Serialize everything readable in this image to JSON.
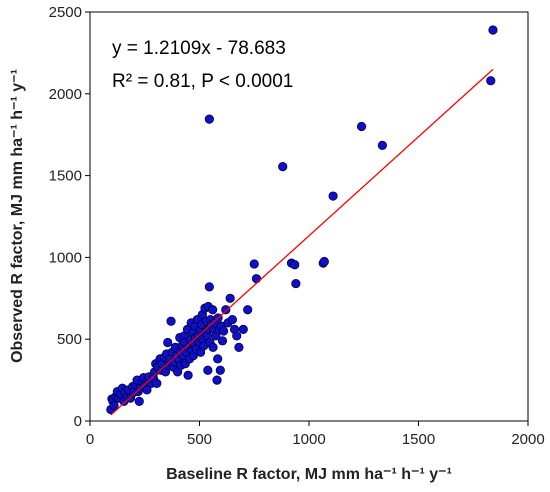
{
  "chart_data": {
    "type": "scatter",
    "title": "",
    "xlabel": "Baseline R factor, MJ mm ha⁻¹ h⁻¹ y⁻¹",
    "ylabel": "Observed R factor, MJ mm ha⁻¹ h⁻¹ y⁻¹",
    "xlim": [
      0,
      2000
    ],
    "ylim": [
      0,
      2500
    ],
    "xticks": [
      0,
      500,
      1000,
      1500,
      2000
    ],
    "yticks": [
      0,
      500,
      1000,
      1500,
      2000,
      2500
    ],
    "grid": false,
    "legend": "none",
    "annotations": [
      "y = 1.2109x - 78.683",
      "R² = 0.81, P < 0.0001"
    ],
    "fit_line": {
      "slope": 1.2109,
      "intercept": -78.683,
      "x_range": [
        95,
        1840
      ],
      "color": "#ff0000"
    },
    "colors": {
      "point_fill": "#1010c8",
      "point_stroke": "#000040",
      "fit": "#ff0000"
    },
    "series": [
      {
        "values": [
          [
            95,
            70
          ],
          [
            100,
            135
          ],
          [
            105,
            120
          ],
          [
            110,
            95
          ],
          [
            118,
            150
          ],
          [
            125,
            180
          ],
          [
            130,
            140
          ],
          [
            140,
            165
          ],
          [
            148,
            200
          ],
          [
            155,
            120
          ],
          [
            160,
            175
          ],
          [
            170,
            150
          ],
          [
            175,
            190
          ],
          [
            185,
            140
          ],
          [
            195,
            210
          ],
          [
            200,
            175
          ],
          [
            210,
            220
          ],
          [
            215,
            250
          ],
          [
            220,
            180
          ],
          [
            225,
            120
          ],
          [
            230,
            200
          ],
          [
            240,
            240
          ],
          [
            245,
            265
          ],
          [
            250,
            215
          ],
          [
            260,
            190
          ],
          [
            265,
            250
          ],
          [
            270,
            270
          ],
          [
            280,
            230
          ],
          [
            290,
            260
          ],
          [
            295,
            300
          ],
          [
            300,
            350
          ],
          [
            305,
            230
          ],
          [
            310,
            330
          ],
          [
            320,
            380
          ],
          [
            325,
            310
          ],
          [
            330,
            350
          ],
          [
            340,
            390
          ],
          [
            345,
            300
          ],
          [
            350,
            410
          ],
          [
            355,
            480
          ],
          [
            360,
            340
          ],
          [
            365,
            380
          ],
          [
            370,
            610
          ],
          [
            375,
            420
          ],
          [
            380,
            330
          ],
          [
            385,
            360
          ],
          [
            390,
            450
          ],
          [
            395,
            400
          ],
          [
            400,
            300
          ],
          [
            405,
            380
          ],
          [
            410,
            510
          ],
          [
            412,
            420
          ],
          [
            415,
            340
          ],
          [
            420,
            460
          ],
          [
            425,
            400
          ],
          [
            430,
            520
          ],
          [
            432,
            480
          ],
          [
            435,
            350
          ],
          [
            440,
            420
          ],
          [
            445,
            560
          ],
          [
            448,
            280
          ],
          [
            450,
            450
          ],
          [
            455,
            380
          ],
          [
            460,
            500
          ],
          [
            462,
            600
          ],
          [
            465,
            430
          ],
          [
            470,
            540
          ],
          [
            472,
            400
          ],
          [
            475,
            470
          ],
          [
            480,
            580
          ],
          [
            482,
            510
          ],
          [
            485,
            440
          ],
          [
            490,
            620
          ],
          [
            495,
            520
          ],
          [
            500,
            480
          ],
          [
            503,
            560
          ],
          [
            505,
            420
          ],
          [
            510,
            590
          ],
          [
            513,
            650
          ],
          [
            515,
            500
          ],
          [
            520,
            460
          ],
          [
            525,
            690
          ],
          [
            528,
            540
          ],
          [
            530,
            610
          ],
          [
            535,
            520
          ],
          [
            538,
            310
          ],
          [
            540,
            700
          ],
          [
            543,
            560
          ],
          [
            545,
            820
          ],
          [
            548,
            480
          ],
          [
            550,
            620
          ],
          [
            555,
            590
          ],
          [
            560,
            680
          ],
          [
            562,
            450
          ],
          [
            565,
            560
          ],
          [
            570,
            600
          ],
          [
            575,
            520
          ],
          [
            580,
            250
          ],
          [
            583,
            380
          ],
          [
            585,
            630
          ],
          [
            590,
            560
          ],
          [
            595,
            310
          ],
          [
            600,
            580
          ],
          [
            605,
            490
          ],
          [
            610,
            550
          ],
          [
            620,
            680
          ],
          [
            630,
            600
          ],
          [
            640,
            750
          ],
          [
            650,
            620
          ],
          [
            660,
            560
          ],
          [
            670,
            520
          ],
          [
            680,
            450
          ],
          [
            700,
            560
          ],
          [
            720,
            680
          ],
          [
            750,
            960
          ],
          [
            760,
            870
          ],
          [
            545,
            1845
          ],
          [
            880,
            1555
          ],
          [
            920,
            965
          ],
          [
            935,
            955
          ],
          [
            940,
            840
          ],
          [
            1065,
            965
          ],
          [
            1070,
            975
          ],
          [
            1110,
            1375
          ],
          [
            1240,
            1800
          ],
          [
            1335,
            1685
          ],
          [
            1830,
            2080
          ],
          [
            1840,
            2390
          ]
        ]
      }
    ]
  }
}
